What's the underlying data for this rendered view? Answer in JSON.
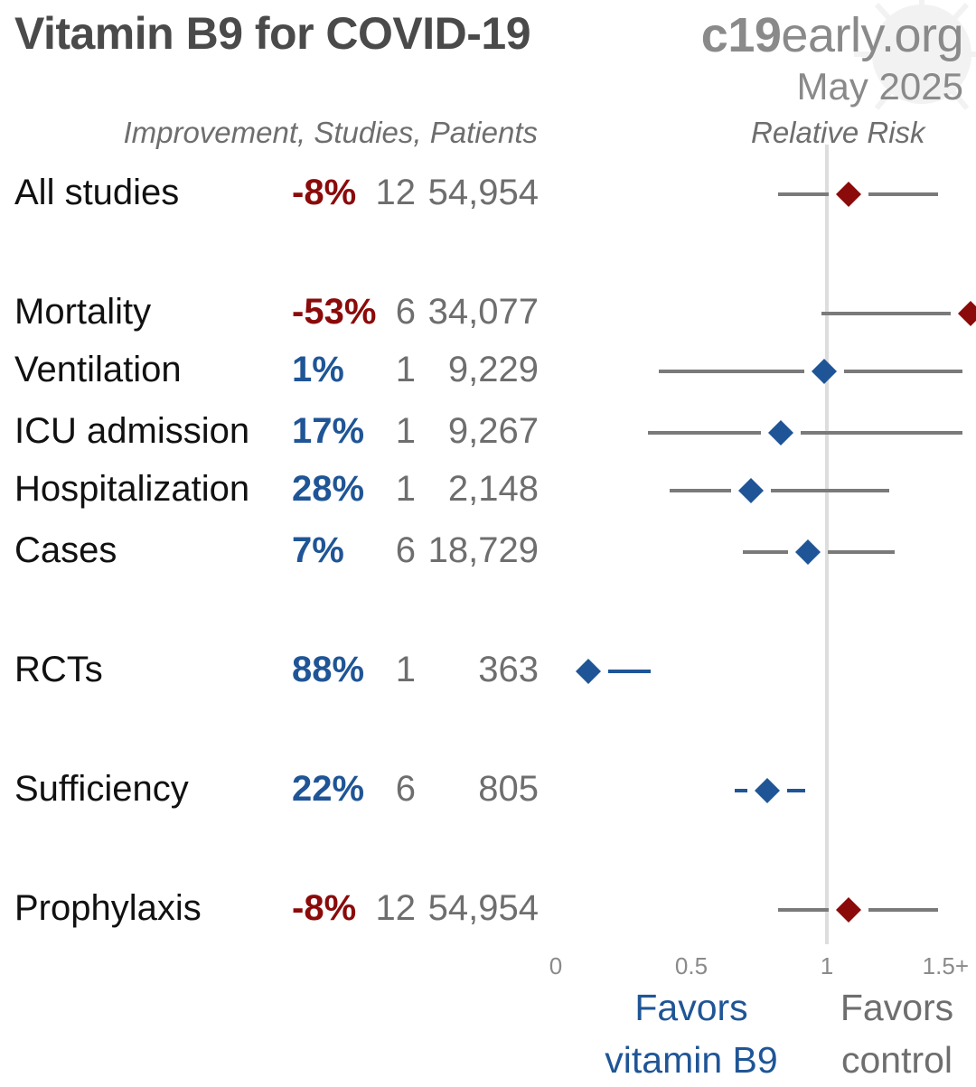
{
  "header": {
    "title": "Vitamin B9 for COVID-19",
    "site_bold": "c19",
    "site_rest": "early.org",
    "date": "May 2025",
    "col_stats": "Improvement, Studies, Patients",
    "col_rr": "Relative Risk"
  },
  "colors": {
    "positive": "#1f5596",
    "negative": "#8b0a0a",
    "ci_line": "#7a7a7a",
    "null_line": "#dddddd",
    "label": "#111111",
    "muted": "#6e6e6e"
  },
  "chart_data": {
    "type": "forest",
    "xlabel": "Relative Risk",
    "xlim": [
      0,
      1.5
    ],
    "xticks": [
      {
        "value": 0,
        "label": "0"
      },
      {
        "value": 0.5,
        "label": "0.5"
      },
      {
        "value": 1,
        "label": "1"
      },
      {
        "value": 1.5,
        "label": "1.5+"
      }
    ],
    "null_value": 1,
    "favors_left": [
      "Favors",
      "vitamin B9"
    ],
    "favors_right": [
      "Favors",
      "control"
    ],
    "rows": [
      {
        "label": "All studies",
        "improvement": "-8%",
        "studies": "12",
        "patients": "54,954",
        "rr": 1.08,
        "lo": 0.82,
        "hi": 1.41,
        "direction": "negative"
      },
      {
        "label": "Mortality",
        "improvement": "-53%",
        "studies": "6",
        "patients": "34,077",
        "rr": 1.53,
        "lo": 0.98,
        "hi": 1.5,
        "direction": "negative"
      },
      {
        "label": "Ventilation",
        "improvement": "1%",
        "studies": "1",
        "patients": "9,229",
        "rr": 0.99,
        "lo": 0.38,
        "hi": 1.5,
        "direction": "positive"
      },
      {
        "label": "ICU admission",
        "improvement": "17%",
        "studies": "1",
        "patients": "9,267",
        "rr": 0.83,
        "lo": 0.34,
        "hi": 1.5,
        "direction": "positive"
      },
      {
        "label": "Hospitalization",
        "improvement": "28%",
        "studies": "1",
        "patients": "2,148",
        "rr": 0.72,
        "lo": 0.42,
        "hi": 1.23,
        "direction": "positive"
      },
      {
        "label": "Cases",
        "improvement": "7%",
        "studies": "6",
        "patients": "18,729",
        "rr": 0.93,
        "lo": 0.69,
        "hi": 1.25,
        "direction": "positive"
      },
      {
        "label": "RCTs",
        "improvement": "88%",
        "studies": "1",
        "patients": "363",
        "rr": 0.12,
        "lo": 0.05,
        "hi": 0.35,
        "direction": "positive"
      },
      {
        "label": "Sufficiency",
        "improvement": "22%",
        "studies": "6",
        "patients": "805",
        "rr": 0.78,
        "lo": 0.66,
        "hi": 0.92,
        "direction": "positive"
      },
      {
        "label": "Prophylaxis",
        "improvement": "-8%",
        "studies": "12",
        "patients": "54,954",
        "rr": 1.08,
        "lo": 0.82,
        "hi": 1.41,
        "direction": "negative"
      }
    ]
  }
}
